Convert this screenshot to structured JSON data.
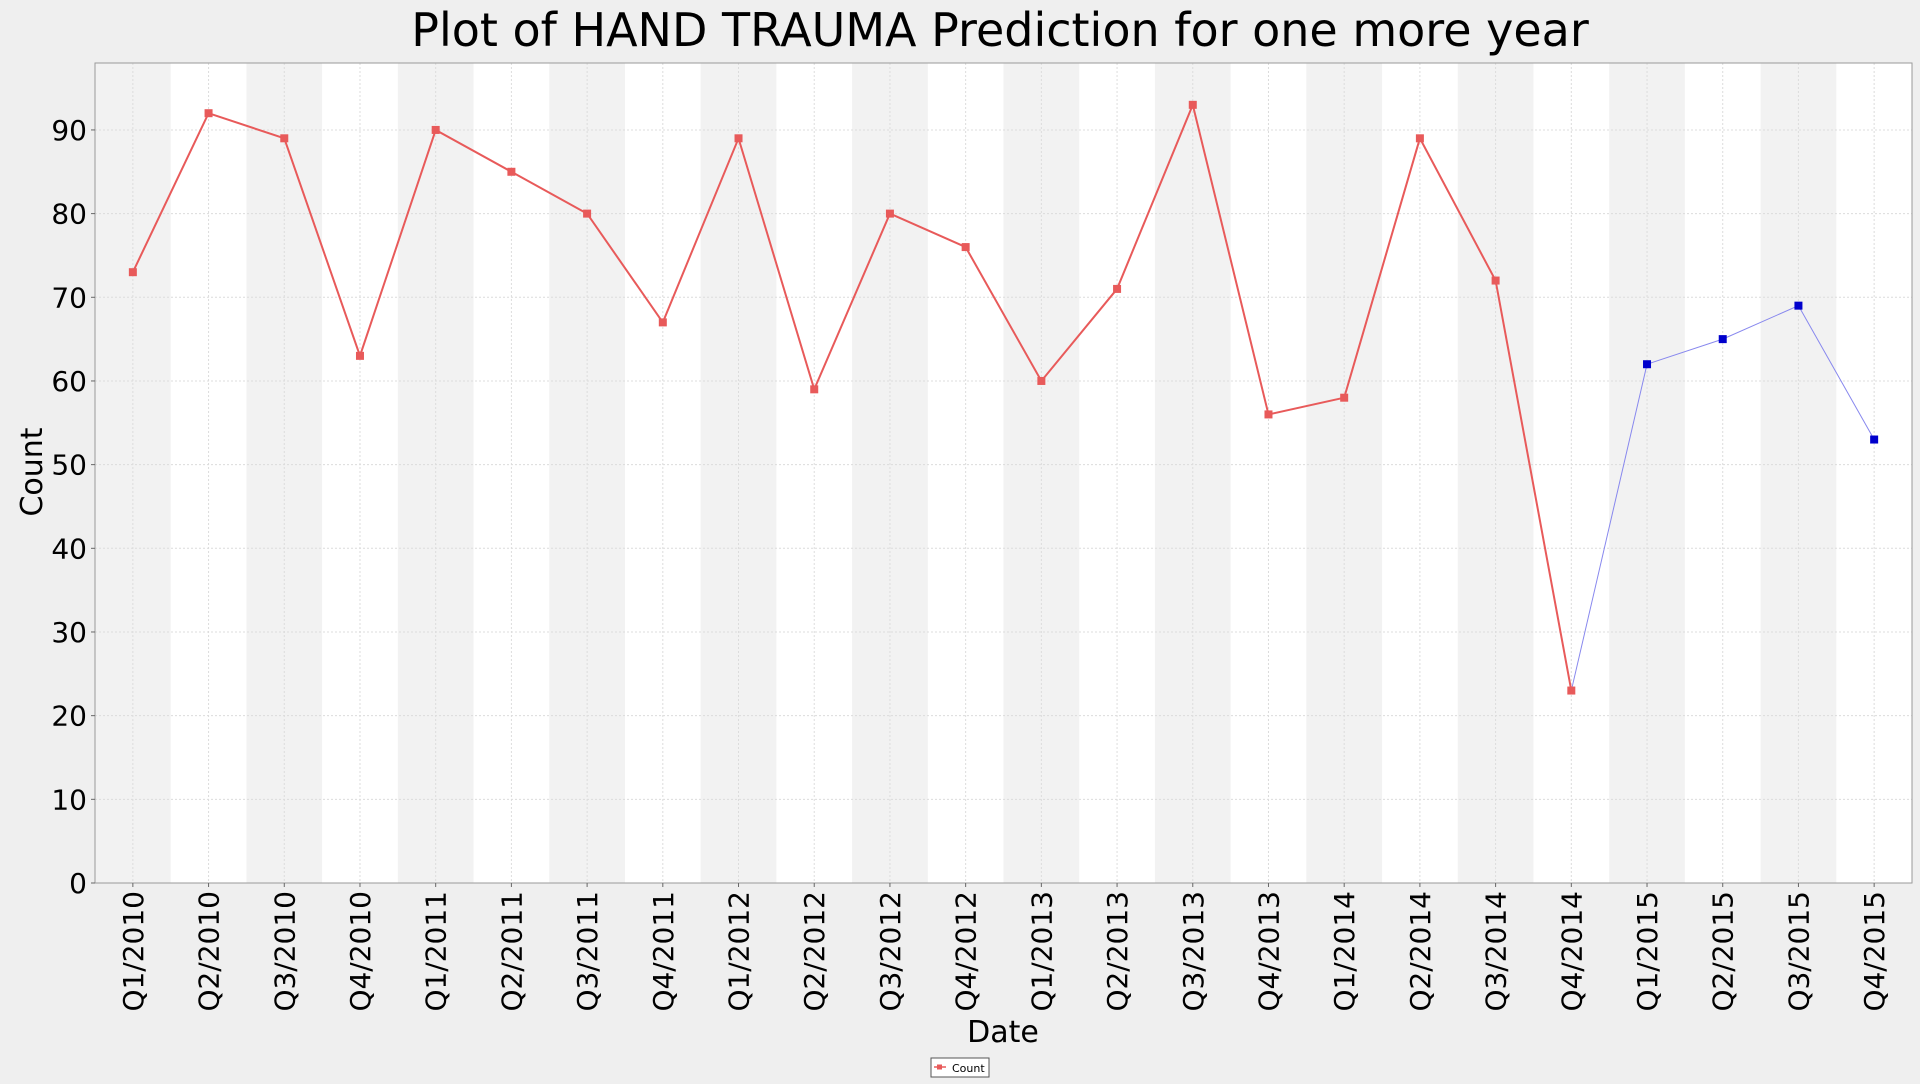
{
  "chart_data": {
    "type": "line",
    "title": "Plot of HAND TRAUMA Prediction for one more year",
    "xlabel": "Date",
    "ylabel": "Count",
    "ylim": [
      0,
      98
    ],
    "yticks": [
      0,
      10,
      20,
      30,
      40,
      50,
      60,
      70,
      80,
      90
    ],
    "grid": true,
    "legend_position": "bottom-center",
    "categories": [
      "Q1/2010",
      "Q2/2010",
      "Q3/2010",
      "Q4/2010",
      "Q1/2011",
      "Q2/2011",
      "Q3/2011",
      "Q4/2011",
      "Q1/2012",
      "Q2/2012",
      "Q3/2012",
      "Q4/2012",
      "Q1/2013",
      "Q2/2013",
      "Q3/2013",
      "Q4/2013",
      "Q1/2014",
      "Q2/2014",
      "Q3/2014",
      "Q4/2014",
      "Q1/2015",
      "Q2/2015",
      "Q3/2015",
      "Q4/2015"
    ],
    "series": [
      {
        "name": "Count",
        "color": "#e85a5a",
        "values": [
          73,
          92,
          89,
          63,
          90,
          85,
          80,
          67,
          89,
          59,
          80,
          76,
          60,
          71,
          93,
          56,
          58,
          89,
          72,
          23,
          null,
          null,
          null,
          null
        ]
      },
      {
        "color": "#0000cc",
        "line_color": "#8888ee",
        "anchor": {
          "category": "Q4/2014",
          "value": 23
        },
        "values": [
          null,
          null,
          null,
          null,
          null,
          null,
          null,
          null,
          null,
          null,
          null,
          null,
          null,
          null,
          null,
          null,
          null,
          null,
          null,
          null,
          62,
          65,
          69,
          53
        ]
      }
    ]
  }
}
